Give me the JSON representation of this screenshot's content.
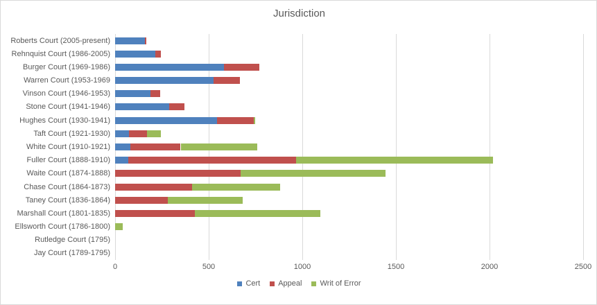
{
  "chart_data": {
    "type": "bar",
    "orientation": "horizontal",
    "stacked": true,
    "title": "Jurisdiction",
    "categories": [
      "Roberts Court (2005-present)",
      "Rehnquist Court (1986-2005)",
      "Burger Court (1969-1986)",
      "Warren Court (1953-1969",
      "Vinson Court (1946-1953)",
      "Stone Court (1941-1946)",
      "Hughes Court (1930-1941)",
      "Taft Court (1921-1930)",
      "White Court (1910-1921)",
      "Fuller Court (1888-1910)",
      "Waite Court (1874-1888)",
      "Chase Court (1864-1873)",
      "Taney Court (1836-1864)",
      "Marshall Court (1801-1835)",
      "Ellsworth Court (1786-1800)",
      "Rutledge Court (1795)",
      "Jay Court (1789-1795)"
    ],
    "series": [
      {
        "name": "Cert",
        "color": "#4F81BD",
        "values": [
          160,
          215,
          580,
          525,
          190,
          290,
          545,
          75,
          80,
          70,
          0,
          0,
          0,
          0,
          0,
          0,
          0
        ]
      },
      {
        "name": "Appeal",
        "color": "#C0504D",
        "values": [
          7,
          30,
          190,
          140,
          50,
          80,
          195,
          95,
          270,
          895,
          670,
          410,
          280,
          425,
          0,
          0,
          0
        ]
      },
      {
        "name": "Writ of Error",
        "color": "#9BBB59",
        "values": [
          0,
          0,
          0,
          0,
          0,
          0,
          10,
          75,
          410,
          1055,
          775,
          470,
          400,
          670,
          40,
          0,
          0
        ]
      }
    ],
    "xlim": [
      0,
      2500
    ],
    "xticks": [
      0,
      500,
      1000,
      1500,
      2000,
      2500
    ],
    "grid": true,
    "legend_position": "bottom",
    "colors": {
      "text": "#595959",
      "gridline": "#D9D9D9",
      "border": "#D9D9D9",
      "background": "#FFFFFF"
    }
  }
}
